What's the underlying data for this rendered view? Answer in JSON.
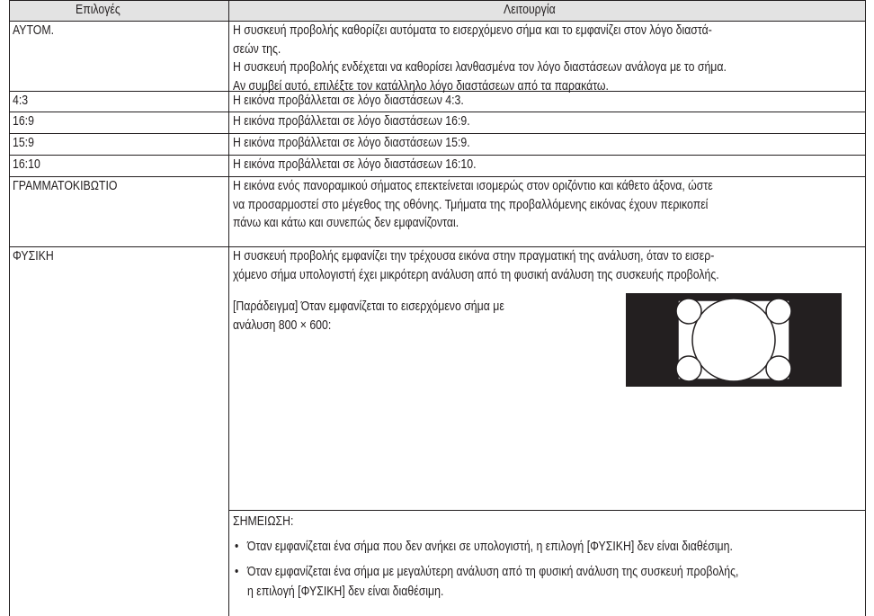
{
  "table": {
    "header": [
      "Επιλογές",
      "Λειτουργία"
    ],
    "rows": [
      {
        "option": "ΑΥΤΟΜ.",
        "lines": [
          "Η συσκευή προβολής καθορίζει αυτόματα το εισερχόμενο σήμα και το εμφανίζει στον λόγο διαστά-",
          "σεών της.",
          "Η συσκευή προβολής ενδέχεται να καθορίσει λανθασμένα τον λόγο διαστάσεων ανάλογα με το σήμα.",
          "Αν συμβεί αυτό, επιλέξτε τον κατάλληλο λόγο διαστάσεων από τα παρακάτω."
        ]
      },
      {
        "option": "4:3",
        "lines": [
          "Η εικόνα προβάλλεται σε λόγο διαστάσεων 4:3."
        ]
      },
      {
        "option": "16:9",
        "lines": [
          "Η εικόνα προβάλλεται σε λόγο διαστάσεων 16:9."
        ]
      },
      {
        "option": "15:9",
        "lines": [
          "Η εικόνα προβάλλεται σε λόγο διαστάσεων 15:9."
        ]
      },
      {
        "option": "16:10",
        "lines": [
          "Η εικόνα προβάλλεται σε λόγο διαστάσεων 16:10."
        ]
      },
      {
        "option": "ΓΡΑΜΜΑΤΟΚΙΒΩΤΙΟ",
        "lines": [
          "Η εικόνα ενός πανοραμικού σήματος επεκτείνεται ισομερώς στον οριζόντιο και κάθετο άξονα, ώστε",
          "να προσαρμοστεί στο μέγεθος της οθόνης. Τμήματα της προβαλλόμενης εικόνας έχουν περικοπεί",
          "πάνω και κάτω και συνεπώς δεν εμφανίζονται."
        ]
      },
      {
        "option": "ΦΥΣΙΚΗ",
        "lines": [
          "Η συσκευή προβολής εμφανίζει την τρέχουσα εικόνα στην πραγματική της ανάλυση, όταν το εισερ-",
          "χόμενο σήμα υπολογιστή έχει μικρότερη ανάλυση από τη φυσική ανάλυση της συσκευής προβολής."
        ],
        "example": [
          "[Παράδειγμα] Όταν εμφανίζεται το εισερχόμενο σήμα με",
          "ανάλυση 800 × 600:"
        ],
        "note": {
          "title": "ΣΗΜΕΙΩΣΗ:",
          "items": [
            [
              "Όταν εμφανίζεται ένα σήμα που δεν ανήκει σε υπολογιστή, η επιλογή [ΦΥΣΙΚΗ] δεν είναι διαθέσιμη."
            ],
            [
              "Όταν εμφανίζεται ένα σήμα με μεγαλύτερη ανάλυση από τη φυσική ανάλυση της συσκευή προβολής,",
              "η επιλογή [ΦΥΣΙΚΗ] δεν είναι διαθέσιμη."
            ]
          ]
        }
      }
    ]
  }
}
